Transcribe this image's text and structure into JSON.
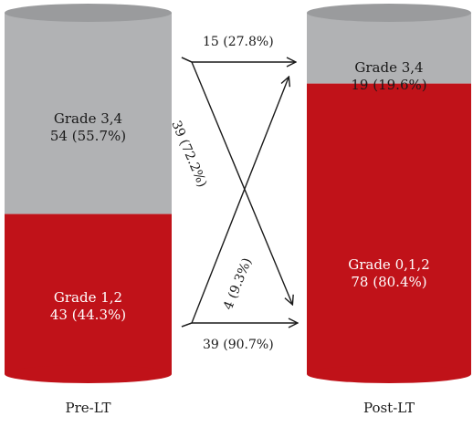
{
  "colors": {
    "gray": "#b1b2b4",
    "gray_dark": "#9a9b9d",
    "red": "#c01219",
    "red_dark": "#a30e14",
    "arrow": "#1a1a1a"
  },
  "pre_lt": {
    "label": "Pre-LT",
    "top": {
      "grade": "Grade 3,4",
      "count": "54 (55.7%)",
      "fraction": 0.557
    },
    "bottom": {
      "grade": "Grade 1,2",
      "count": "43 (44.3%)",
      "fraction": 0.443
    }
  },
  "post_lt": {
    "label": "Post-LT",
    "top": {
      "grade": "Grade 3,4",
      "count": "19 (19.6%)",
      "fraction": 0.196
    },
    "bottom": {
      "grade": "Grade 0,1,2",
      "count": "78 (80.4%)",
      "fraction": 0.804
    }
  },
  "flows": {
    "high_to_high": "15 (27.8%)",
    "high_to_low": "39 (72.2%)",
    "low_to_high": "4 (9.3%)",
    "low_to_low": "39 (90.7%)"
  }
}
